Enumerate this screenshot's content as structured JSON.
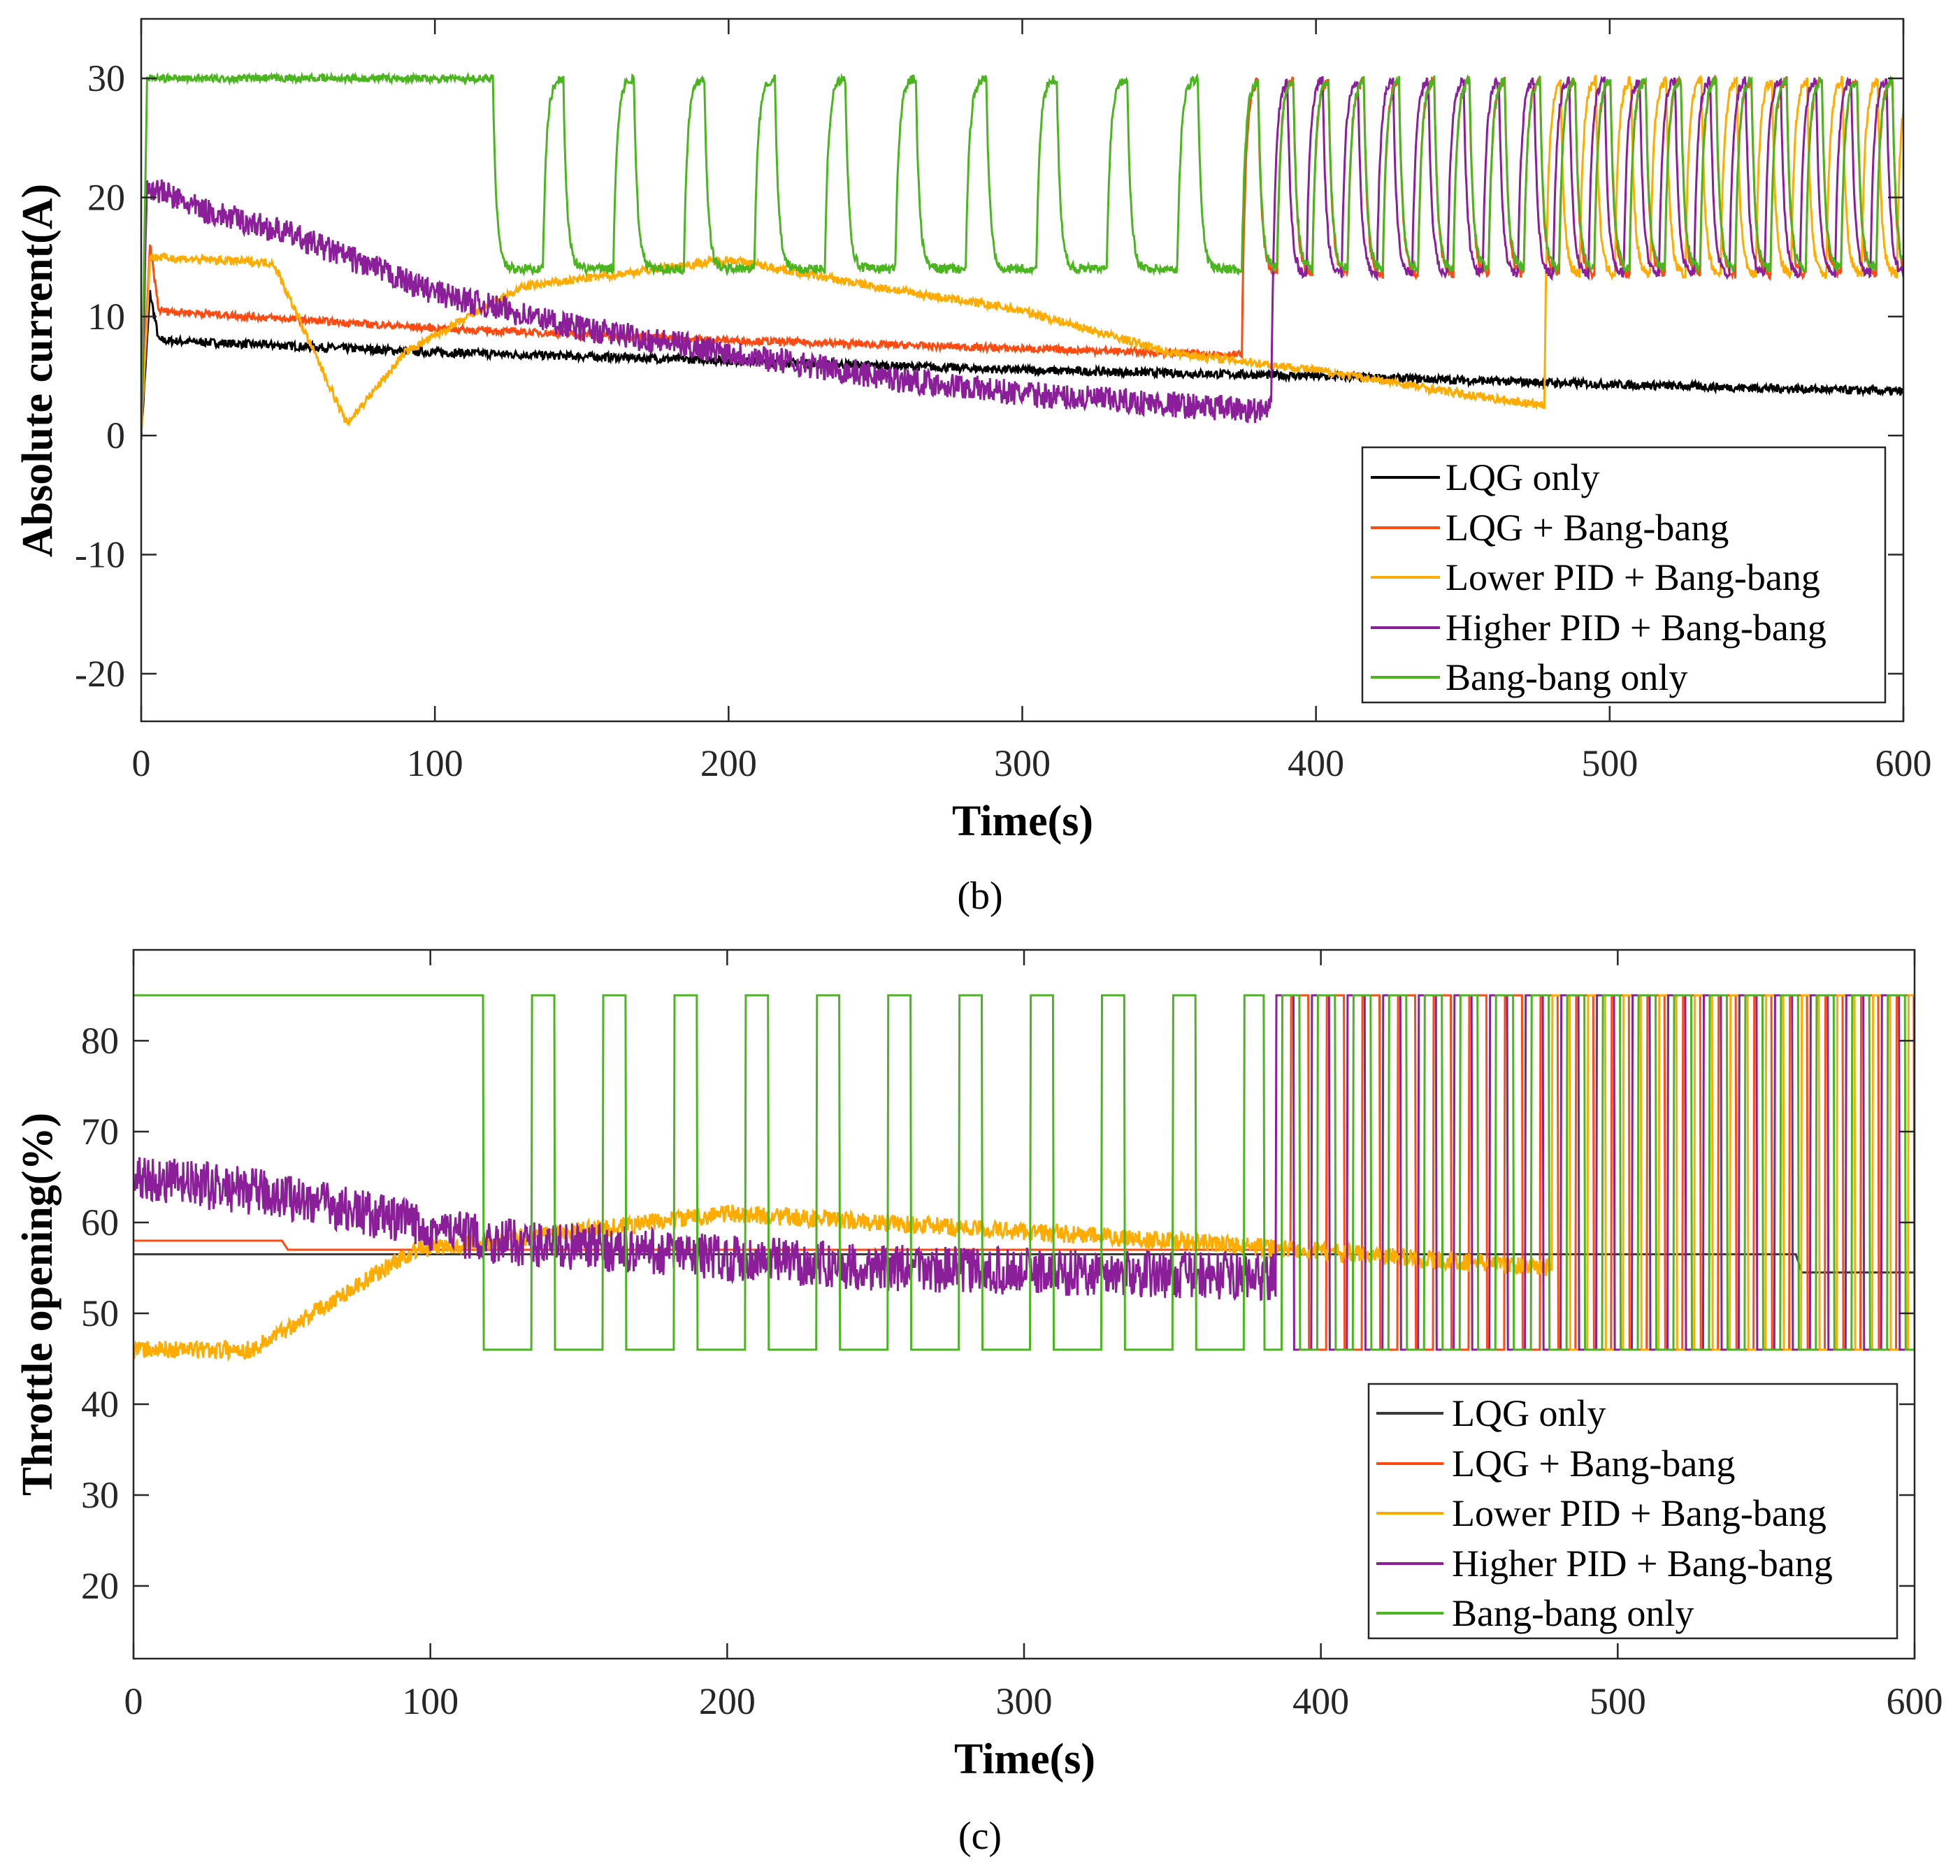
{
  "chart_data": [
    {
      "type": "line",
      "panel_label": "(b)",
      "title": "",
      "xlabel": "Time(s)",
      "ylabel": "Absolute current(A)",
      "xlim": [
        0,
        600
      ],
      "ylim": [
        -24,
        35
      ],
      "xticks": [
        0,
        100,
        200,
        300,
        400,
        500,
        600
      ],
      "yticks": [
        -20,
        -10,
        0,
        10,
        20,
        30
      ],
      "legend_position": "bottom-right",
      "grid": false,
      "series": [
        {
          "name": "LQG only",
          "color": "#000000",
          "noise": 0.35,
          "points": [
            [
              0,
              0
            ],
            [
              3,
              12
            ],
            [
              6,
              8
            ],
            [
              100,
              7
            ],
            [
              200,
              6.3
            ],
            [
              300,
              5.5
            ],
            [
              400,
              5
            ],
            [
              500,
              4.3
            ],
            [
              600,
              3.7
            ]
          ]
        },
        {
          "name": "LQG + Bang-bang",
          "color": "#ff4a12",
          "noise": 0.3,
          "points": [
            [
              0,
              0
            ],
            [
              3,
              16
            ],
            [
              6,
              10.5
            ],
            [
              100,
              9
            ],
            [
              200,
              8
            ],
            [
              300,
              7.3
            ],
            [
              375,
              6.8
            ]
          ],
          "bangbang": {
            "start": 375,
            "period": 12,
            "duty": 0.45,
            "high": 30,
            "low": 13.5
          }
        },
        {
          "name": "Lower PID + Bang-bang",
          "color": "#ffab00",
          "noise": 0.35,
          "points": [
            [
              0,
              0
            ],
            [
              3,
              15
            ],
            [
              45,
              14.5
            ],
            [
              70,
              1
            ],
            [
              90,
              7
            ],
            [
              130,
              12.5
            ],
            [
              200,
              14.8
            ],
            [
              250,
              12.5
            ],
            [
              300,
              10.5
            ],
            [
              350,
              7
            ],
            [
              400,
              5.5
            ],
            [
              450,
              3.5
            ],
            [
              478,
              2.5
            ]
          ],
          "bangbang": {
            "start": 478,
            "period": 12,
            "duty": 0.45,
            "high": 30,
            "low": 13.5
          }
        },
        {
          "name": "Higher PID + Bang-bang",
          "color": "#8b1f9a",
          "noise": 1.1,
          "points": [
            [
              0,
              0
            ],
            [
              2,
              21
            ],
            [
              20,
              19
            ],
            [
              50,
              17
            ],
            [
              100,
              12
            ],
            [
              150,
              9
            ],
            [
              200,
              7
            ],
            [
              250,
              5
            ],
            [
              300,
              3.5
            ],
            [
              385,
              2
            ]
          ],
          "bangbang": {
            "start": 385,
            "period": 12,
            "duty": 0.45,
            "high": 30,
            "low": 13.5
          }
        },
        {
          "name": "Bang-bang only",
          "color": "#4ab51e",
          "noise": 0.3,
          "points": [
            [
              0,
              0
            ],
            [
              2,
              30
            ],
            [
              120,
              30
            ]
          ],
          "bangbang": {
            "start": 120,
            "period": 24,
            "duty": 0.3,
            "high": 30,
            "low": 14,
            "start_low": true,
            "switch_at": 375,
            "period2": 12,
            "duty2": 0.45
          }
        }
      ]
    },
    {
      "type": "line",
      "panel_label": "(c)",
      "title": "",
      "xlabel": "Time(s)",
      "ylabel": "Throttle opening(%)",
      "xlim": [
        0,
        600
      ],
      "ylim": [
        12,
        90
      ],
      "xticks": [
        0,
        100,
        200,
        300,
        400,
        500,
        600
      ],
      "yticks": [
        20,
        30,
        40,
        50,
        60,
        70,
        80
      ],
      "legend_position": "bottom-right",
      "grid": false,
      "series": [
        {
          "name": "LQG only",
          "color": "#3a3a3a",
          "noise": 0,
          "points": [
            [
              0,
              56.5
            ],
            [
              560,
              56.5
            ],
            [
              562,
              54.5
            ],
            [
              600,
              54.5
            ]
          ]
        },
        {
          "name": "LQG + Bang-bang",
          "color": "#ff4a12",
          "noise": 0,
          "points": [
            [
              0,
              58
            ],
            [
              50,
              58
            ],
            [
              52,
              57
            ],
            [
              390,
              57
            ]
          ],
          "bangbang": {
            "start": 390,
            "period": 12,
            "duty": 0.5,
            "high": 85,
            "low": 46,
            "sharp": true
          }
        },
        {
          "name": "Lower PID + Bang-bang",
          "color": "#ffab00",
          "noise": 1.0,
          "points": [
            [
              0,
              46
            ],
            [
              40,
              46
            ],
            [
              60,
              50
            ],
            [
              95,
              57
            ],
            [
              200,
              61
            ],
            [
              350,
              58
            ],
            [
              478,
              55
            ]
          ],
          "bangbang": {
            "start": 478,
            "period": 12,
            "duty": 0.5,
            "high": 85,
            "low": 46,
            "sharp": true
          }
        },
        {
          "name": "Higher PID + Bang-bang",
          "color": "#8b1f9a",
          "noise": 2.6,
          "points": [
            [
              0,
              65
            ],
            [
              50,
              63
            ],
            [
              120,
              58
            ],
            [
              250,
              55
            ],
            [
              385,
              54
            ]
          ],
          "bangbang": {
            "start": 385,
            "period": 12,
            "duty": 0.5,
            "high": 85,
            "low": 46,
            "sharp": true
          }
        },
        {
          "name": "Bang-bang only",
          "color": "#4ab51e",
          "noise": 0,
          "points": [
            [
              0,
              85
            ],
            [
              118,
              85
            ]
          ],
          "bangbang": {
            "start": 118,
            "period": 24,
            "duty": 0.33,
            "high": 85,
            "low": 46,
            "start_low": true,
            "sharp": true,
            "switch_at": 375,
            "period2": 12,
            "duty2": 0.5
          }
        }
      ]
    }
  ]
}
